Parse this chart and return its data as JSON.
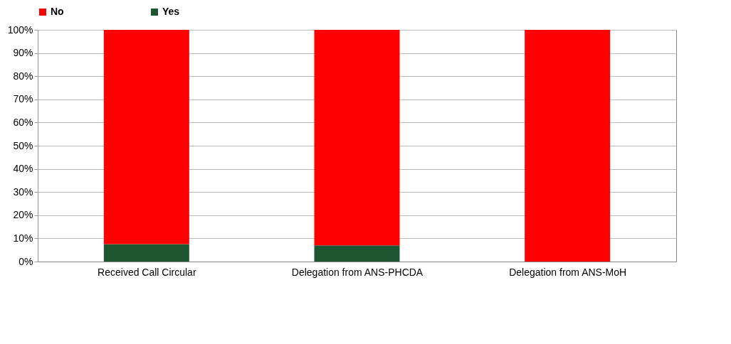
{
  "chart_data": {
    "type": "bar",
    "stacked": true,
    "categories": [
      "Received Call Circular",
      "Delegation from ANS-PHCDA",
      "Delegation from ANS-MoH"
    ],
    "series": [
      {
        "name": "Yes",
        "color": "#1e5631",
        "values": [
          7.5,
          7,
          0
        ]
      },
      {
        "name": "No",
        "color": "#ff0000",
        "values": [
          92.5,
          93,
          100
        ]
      }
    ],
    "ylim": [
      0,
      100
    ],
    "yticks": [
      {
        "value": 0,
        "label": "0%"
      },
      {
        "value": 10,
        "label": "10%"
      },
      {
        "value": 20,
        "label": "20%"
      },
      {
        "value": 30,
        "label": "30%"
      },
      {
        "value": 40,
        "label": "40%"
      },
      {
        "value": 50,
        "label": "50%"
      },
      {
        "value": 60,
        "label": "60%"
      },
      {
        "value": 70,
        "label": "70%"
      },
      {
        "value": 80,
        "label": "80%"
      },
      {
        "value": 90,
        "label": "90%"
      },
      {
        "value": 100,
        "label": "100%"
      }
    ],
    "grid": "y",
    "legend": "top"
  }
}
